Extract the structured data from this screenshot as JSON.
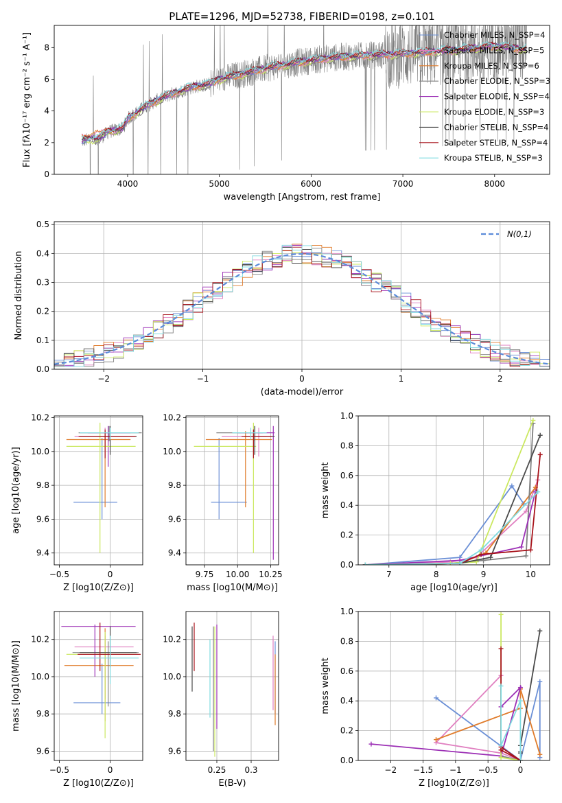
{
  "figure": {
    "title": "PLATE=1296, MJD=52738, FIBERID=0198, z=0.101"
  },
  "colors": {
    "chabrier_miles": "#6a8fd6",
    "salpeter_miles": "#e07fc0",
    "kroupa_miles": "#e07b2a",
    "chabrier_elodie": "#7f7f7f",
    "salpeter_elodie": "#9c2fb5",
    "kroupa_elodie": "#cbe860",
    "chabrier_stelib": "#4a4a4a",
    "salpeter_stelib": "#a8131b",
    "kroupa_stelib": "#7fdbe0",
    "normal": "#5b8bd9"
  },
  "chart_data": [
    {
      "id": "spectrum",
      "type": "line",
      "xlabel": "wavelength [Angstrom, rest frame]",
      "ylabel": "Flux [fλ10⁻¹⁷ erg cm⁻² s⁻¹ A⁻¹]",
      "xlim": [
        3200,
        8600
      ],
      "ylim": [
        0,
        9.4
      ],
      "xticks": [
        4000,
        5000,
        6000,
        7000,
        8000
      ],
      "yticks": [
        0,
        2,
        4,
        6,
        8
      ],
      "legend_position": "top-right",
      "series": [
        {
          "name": "Chabrier MILES, N_SSP=4",
          "color_key": "chabrier_miles"
        },
        {
          "name": "Salpeter MILES, N_SSP=5",
          "color_key": "salpeter_miles"
        },
        {
          "name": "Kroupa MILES, N_SSP=6",
          "color_key": "kroupa_miles"
        },
        {
          "name": "Chabrier ELODIE, N_SSP=3",
          "color_key": "chabrier_elodie"
        },
        {
          "name": "Salpeter ELODIE, N_SSP=4",
          "color_key": "salpeter_elodie"
        },
        {
          "name": "Kroupa ELODIE, N_SSP=3",
          "color_key": "kroupa_elodie"
        },
        {
          "name": "Chabrier STELIB, N_SSP=4",
          "color_key": "chabrier_stelib"
        },
        {
          "name": "Salpeter STELIB, N_SSP=4",
          "color_key": "salpeter_stelib"
        },
        {
          "name": "Kroupa STELIB, N_SSP=3",
          "color_key": "kroupa_stelib"
        }
      ],
      "continuum": [
        [
          3500,
          2.1
        ],
        [
          3700,
          2.3
        ],
        [
          3800,
          2.7
        ],
        [
          3950,
          2.9
        ],
        [
          4000,
          3.5
        ],
        [
          4200,
          4.3
        ],
        [
          4400,
          4.9
        ],
        [
          4700,
          5.5
        ],
        [
          4900,
          5.7
        ],
        [
          5000,
          6.0
        ],
        [
          5300,
          6.4
        ],
        [
          5600,
          6.8
        ],
        [
          6000,
          7.2
        ],
        [
          6300,
          7.4
        ],
        [
          6600,
          7.5
        ],
        [
          7000,
          7.6
        ],
        [
          7500,
          7.8
        ],
        [
          8000,
          8.1
        ],
        [
          8300,
          7.9
        ]
      ],
      "data_x_range": [
        3500,
        8350
      ]
    },
    {
      "id": "residuals",
      "type": "histogram",
      "xlabel": "(data-model)/error",
      "ylabel": "Normed distribution",
      "xlim": [
        -2.5,
        2.5
      ],
      "ylim": [
        0,
        0.51
      ],
      "xticks": [
        -2,
        -1,
        0,
        1,
        2
      ],
      "yticks": [
        0.0,
        0.1,
        0.2,
        0.3,
        0.4,
        0.5
      ],
      "legend": {
        "label": "N(0,1)",
        "position": "top-right"
      },
      "bin_width": 0.1
    },
    {
      "id": "age_vs_Z",
      "type": "errorbar",
      "xlabel": "Z [log10(Z/Z⊙)]",
      "ylabel": "age  [log10(age/yr)]",
      "xlim": [
        -0.55,
        0.32
      ],
      "ylim": [
        9.33,
        10.21
      ],
      "xticks": [
        -0.5,
        0.0
      ],
      "yticks": [
        9.4,
        9.6,
        9.8,
        10.0,
        10.2
      ],
      "points": [
        {
          "color_key": "chabrier_miles",
          "x": -0.08,
          "xerr": [
            0.28,
            0.15
          ],
          "y": 9.7,
          "yerr": [
            0.1,
            0.38
          ]
        },
        {
          "color_key": "salpeter_miles",
          "x": -0.05,
          "xerr": [
            0.3,
            0.22
          ],
          "y": 10.09,
          "yerr": [
            0.12,
            0.05
          ]
        },
        {
          "color_key": "kroupa_miles",
          "x": -0.05,
          "xerr": [
            0.38,
            0.25
          ],
          "y": 10.07,
          "yerr": [
            0.4,
            0.05
          ]
        },
        {
          "color_key": "chabrier_elodie",
          "x": -0.01,
          "xerr": [
            0.3,
            0.32
          ],
          "y": 10.11,
          "yerr": [
            0.05,
            0.04
          ]
        },
        {
          "color_key": "salpeter_elodie",
          "x": -0.02,
          "xerr": [
            0.2,
            0.22
          ],
          "y": 10.11,
          "yerr": [
            0.2,
            0.04
          ]
        },
        {
          "color_key": "kroupa_elodie",
          "x": -0.1,
          "xerr": [
            0.33,
            0.35
          ],
          "y": 10.03,
          "yerr": [
            0.63,
            0.14
          ]
        },
        {
          "color_key": "chabrier_stelib",
          "x": 0.0,
          "xerr": [
            0.3,
            0.26
          ],
          "y": 10.09,
          "yerr": [
            0.11,
            0.06
          ]
        },
        {
          "color_key": "salpeter_stelib",
          "x": -0.05,
          "xerr": [
            0.26,
            0.3
          ],
          "y": 10.09,
          "yerr": [
            0.13,
            0.04
          ]
        },
        {
          "color_key": "kroupa_stelib",
          "x": 0.0,
          "xerr": [
            0.3,
            0.28
          ],
          "y": 10.11,
          "yerr": [
            0.04,
            0.03
          ]
        }
      ]
    },
    {
      "id": "age_vs_mass",
      "type": "errorbar",
      "xlabel": "mass [log10(M/M⊙)]",
      "ylabel": "",
      "xlim": [
        9.61,
        10.31
      ],
      "ylim": [
        9.33,
        10.21
      ],
      "xticks": [
        9.75,
        10.0,
        10.25
      ],
      "xticklabels": [
        "9.75",
        "10.00",
        "10.25"
      ],
      "yticks": [
        9.4,
        9.6,
        9.8,
        10.0,
        10.2
      ],
      "points": [
        {
          "color_key": "chabrier_miles",
          "x": 9.86,
          "xerr": [
            0.06,
            0.21
          ],
          "y": 9.7,
          "yerr": [
            0.1,
            0.38
          ]
        },
        {
          "color_key": "salpeter_miles",
          "x": 10.16,
          "xerr": [
            0.28,
            0.06
          ],
          "y": 10.09,
          "yerr": [
            0.12,
            0.05
          ]
        },
        {
          "color_key": "kroupa_miles",
          "x": 10.06,
          "xerr": [
            0.3,
            0.2
          ],
          "y": 10.07,
          "yerr": [
            0.4,
            0.05
          ]
        },
        {
          "color_key": "chabrier_elodie",
          "x": 10.13,
          "xerr": [
            0.29,
            0.06
          ],
          "y": 10.11,
          "yerr": [
            0.05,
            0.04
          ]
        },
        {
          "color_key": "salpeter_elodie",
          "x": 10.27,
          "xerr": [
            0.27,
            0.01
          ],
          "y": 10.11,
          "yerr": [
            0.75,
            0.04
          ]
        },
        {
          "color_key": "kroupa_elodie",
          "x": 10.12,
          "xerr": [
            0.45,
            0.02
          ],
          "y": 10.03,
          "yerr": [
            0.63,
            0.14
          ]
        },
        {
          "color_key": "chabrier_stelib",
          "x": 10.13,
          "xerr": [
            0.08,
            0.15
          ],
          "y": 10.09,
          "yerr": [
            0.11,
            0.06
          ]
        },
        {
          "color_key": "salpeter_stelib",
          "x": 10.12,
          "xerr": [
            0.09,
            0.14
          ],
          "y": 10.09,
          "yerr": [
            0.13,
            0.04
          ]
        },
        {
          "color_key": "kroupa_stelib",
          "x": 10.1,
          "xerr": [
            0.14,
            0.12
          ],
          "y": 10.11,
          "yerr": [
            0.04,
            0.03
          ]
        }
      ]
    },
    {
      "id": "weight_vs_age",
      "type": "line",
      "xlabel": "age  [log10(age/yr)]",
      "ylabel": "mass weight",
      "xlim": [
        6.35,
        10.4
      ],
      "ylim": [
        0,
        1.0
      ],
      "xticks": [
        7,
        8,
        9,
        10
      ],
      "yticks": [
        0.0,
        0.2,
        0.4,
        0.6,
        0.8,
        1.0
      ],
      "series": [
        {
          "color_key": "chabrier_miles",
          "x": [
            6.5,
            8.5,
            9.6,
            9.85
          ],
          "y": [
            0.0,
            0.05,
            0.53,
            0.41
          ]
        },
        {
          "color_key": "salpeter_miles",
          "x": [
            6.5,
            8.3,
            8.85,
            9.9,
            10.15
          ],
          "y": [
            0.0,
            0.02,
            0.05,
            0.36,
            0.57
          ]
        },
        {
          "color_key": "kroupa_miles",
          "x": [
            6.5,
            8.5,
            9.05,
            10.1
          ],
          "y": [
            0.0,
            0.01,
            0.08,
            0.52
          ]
        },
        {
          "color_key": "chabrier_elodie",
          "x": [
            6.5,
            8.3,
            9.0,
            9.9,
            10.05
          ],
          "y": [
            0.0,
            0.01,
            0.03,
            0.06,
            0.95
          ]
        },
        {
          "color_key": "salpeter_elodie",
          "x": [
            6.5,
            8.5,
            9.8,
            10.1
          ],
          "y": [
            0.0,
            0.03,
            0.12,
            0.49
          ]
        },
        {
          "color_key": "kroupa_elodie",
          "x": [
            6.5,
            8.3,
            8.85,
            10.05
          ],
          "y": [
            0.0,
            0.01,
            0.02,
            0.97
          ]
        },
        {
          "color_key": "chabrier_stelib",
          "x": [
            6.5,
            8.5,
            9.15,
            10.2
          ],
          "y": [
            0.0,
            0.01,
            0.05,
            0.87
          ]
        },
        {
          "color_key": "salpeter_stelib",
          "x": [
            6.5,
            8.5,
            8.95,
            10.0,
            10.2
          ],
          "y": [
            0.0,
            0.01,
            0.07,
            0.1,
            0.74
          ]
        },
        {
          "color_key": "kroupa_stelib",
          "x": [
            6.5,
            8.5,
            8.95,
            10.15
          ],
          "y": [
            0.0,
            0.01,
            0.1,
            0.49
          ]
        }
      ]
    },
    {
      "id": "mass_vs_Z",
      "type": "errorbar",
      "xlabel": "Z [log10(Z/Z⊙)]",
      "ylabel": "mass [log10(M/M⊙)]",
      "xlim": [
        -0.55,
        0.32
      ],
      "ylim": [
        9.55,
        10.35
      ],
      "xticks": [
        -0.5,
        0.0
      ],
      "yticks": [
        9.6,
        9.8,
        10.0,
        10.2
      ],
      "points": [
        {
          "color_key": "chabrier_miles",
          "x": -0.08,
          "xerr": [
            0.28,
            0.18
          ],
          "y": 9.86,
          "yerr": [
            0.06,
            0.21
          ]
        },
        {
          "color_key": "salpeter_miles",
          "x": -0.05,
          "xerr": [
            0.3,
            0.28
          ],
          "y": 10.16,
          "yerr": [
            0.28,
            0.06
          ]
        },
        {
          "color_key": "kroupa_miles",
          "x": -0.05,
          "xerr": [
            0.4,
            0.28
          ],
          "y": 10.06,
          "yerr": [
            0.3,
            0.2
          ]
        },
        {
          "color_key": "chabrier_elodie",
          "x": -0.02,
          "xerr": [
            0.35,
            0.3
          ],
          "y": 10.13,
          "yerr": [
            0.29,
            0.06
          ]
        },
        {
          "color_key": "salpeter_elodie",
          "x": -0.15,
          "xerr": [
            0.33,
            0.4
          ],
          "y": 10.27,
          "yerr": [
            0.27,
            0.01
          ]
        },
        {
          "color_key": "kroupa_elodie",
          "x": -0.05,
          "xerr": [
            0.38,
            0.32
          ],
          "y": 10.12,
          "yerr": [
            0.45,
            0.12
          ]
        },
        {
          "color_key": "chabrier_stelib",
          "x": 0.0,
          "xerr": [
            0.3,
            0.26
          ],
          "y": 10.13,
          "yerr": [
            0.08,
            0.14
          ]
        },
        {
          "color_key": "salpeter_stelib",
          "x": -0.1,
          "xerr": [
            0.22,
            0.4
          ],
          "y": 10.12,
          "yerr": [
            0.09,
            0.17
          ]
        },
        {
          "color_key": "kroupa_stelib",
          "x": 0.0,
          "xerr": [
            0.3,
            0.28
          ],
          "y": 10.1,
          "yerr": [
            0.14,
            0.12
          ]
        }
      ]
    },
    {
      "id": "mass_vs_ebv",
      "type": "errorbar",
      "xlabel": "E(B-V)",
      "ylabel": "",
      "xlim": [
        0.205,
        0.34
      ],
      "ylim": [
        9.55,
        10.35
      ],
      "xticks": [
        0.25,
        0.3
      ],
      "yticks": [
        9.6,
        9.8,
        10.0,
        10.2
      ],
      "points": [
        {
          "color_key": "chabrier_miles",
          "x": 0.335,
          "xerr": [
            0,
            0
          ],
          "y": 9.86,
          "yerr": [
            0.06,
            0.33
          ]
        },
        {
          "color_key": "salpeter_miles",
          "x": 0.332,
          "xerr": [
            0,
            0
          ],
          "y": 10.16,
          "yerr": [
            0.34,
            0.06
          ]
        },
        {
          "color_key": "kroupa_miles",
          "x": 0.335,
          "xerr": [
            0,
            0
          ],
          "y": 10.06,
          "yerr": [
            0.32,
            0.06
          ]
        },
        {
          "color_key": "chabrier_elodie",
          "x": 0.245,
          "xerr": [
            0,
            0
          ],
          "y": 10.13,
          "yerr": [
            0.53,
            0.14
          ]
        },
        {
          "color_key": "salpeter_elodie",
          "x": 0.25,
          "xerr": [
            0,
            0
          ],
          "y": 10.27,
          "yerr": [
            0.55,
            0.01
          ]
        },
        {
          "color_key": "kroupa_elodie",
          "x": 0.247,
          "xerr": [
            0,
            0
          ],
          "y": 10.12,
          "yerr": [
            0.55,
            0.15
          ]
        },
        {
          "color_key": "chabrier_stelib",
          "x": 0.214,
          "xerr": [
            0,
            0
          ],
          "y": 10.13,
          "yerr": [
            0.21,
            0.14
          ]
        },
        {
          "color_key": "salpeter_stelib",
          "x": 0.217,
          "xerr": [
            0,
            0
          ],
          "y": 10.12,
          "yerr": [
            0.09,
            0.17
          ]
        },
        {
          "color_key": "kroupa_stelib",
          "x": 0.24,
          "xerr": [
            0,
            0
          ],
          "y": 10.1,
          "yerr": [
            0.32,
            0.1
          ]
        }
      ]
    },
    {
      "id": "weight_vs_Z",
      "type": "line",
      "xlabel": "Z [log10(Z/Z⊙)]",
      "ylabel": "mass weight",
      "xlim": [
        -2.5,
        0.45
      ],
      "ylim": [
        0,
        1.0
      ],
      "xticks": [
        -2.0,
        -1.5,
        -1.0,
        -0.5,
        0.0
      ],
      "yticks": [
        0.0,
        0.2,
        0.4,
        0.6,
        0.8,
        1.0
      ],
      "series": [
        {
          "color_key": "chabrier_miles",
          "x": [
            0.3,
            0.3,
            0.0,
            -1.3
          ],
          "y": [
            0.02,
            0.53,
            0.0,
            0.42
          ]
        },
        {
          "color_key": "salpeter_miles",
          "x": [
            -0.3,
            -1.3,
            -0.3,
            0.0
          ],
          "y": [
            0.57,
            0.12,
            0.05,
            0.0
          ]
        },
        {
          "color_key": "kroupa_miles",
          "x": [
            0.3,
            0.0,
            0.0,
            -1.3
          ],
          "y": [
            0.04,
            0.48,
            0.35,
            0.14
          ]
        },
        {
          "color_key": "chabrier_elodie",
          "x": [
            -0.3,
            0.0,
            0.0
          ],
          "y": [
            0.03,
            0.0,
            0.06
          ]
        },
        {
          "color_key": "salpeter_elodie",
          "x": [
            -2.3,
            -0.3,
            0.0,
            -0.3
          ],
          "y": [
            0.11,
            0.03,
            0.49,
            0.36
          ]
        },
        {
          "color_key": "kroupa_elodie",
          "x": [
            -0.3,
            -0.3,
            0.0
          ],
          "y": [
            0.98,
            0.02,
            0.0
          ]
        },
        {
          "color_key": "chabrier_stelib",
          "x": [
            0.0,
            0.0,
            0.3
          ],
          "y": [
            0.05,
            0.1,
            0.87
          ]
        },
        {
          "color_key": "salpeter_stelib",
          "x": [
            -0.3,
            -0.3,
            0.0,
            -0.3
          ],
          "y": [
            0.75,
            0.07,
            0.0,
            0.09
          ]
        },
        {
          "color_key": "kroupa_stelib",
          "x": [
            -0.3,
            -0.3,
            0.0,
            0.0
          ],
          "y": [
            0.5,
            0.1,
            0.4,
            0.0
          ]
        }
      ]
    }
  ]
}
